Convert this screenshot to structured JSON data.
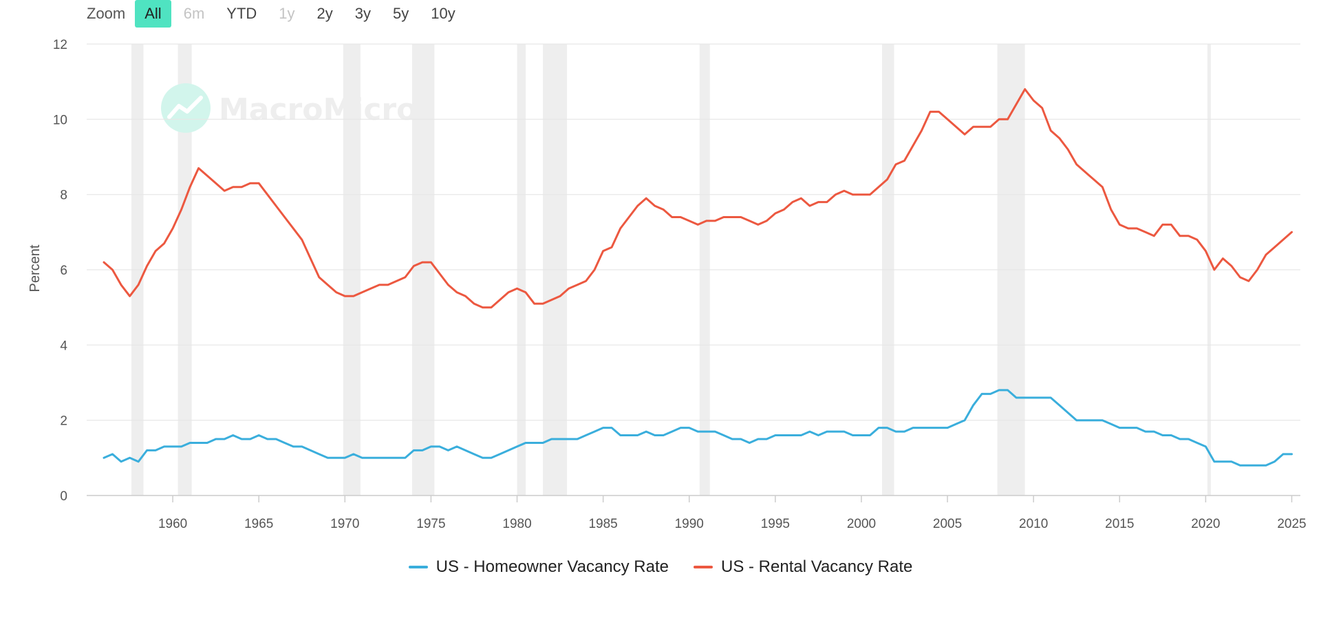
{
  "zoom": {
    "label": "Zoom",
    "buttons": [
      {
        "label": "All",
        "state": "active"
      },
      {
        "label": "6m",
        "state": "disabled"
      },
      {
        "label": "YTD",
        "state": "normal"
      },
      {
        "label": "1y",
        "state": "disabled"
      },
      {
        "label": "2y",
        "state": "normal"
      },
      {
        "label": "3y",
        "state": "normal"
      },
      {
        "label": "5y",
        "state": "normal"
      },
      {
        "label": "10y",
        "state": "normal"
      }
    ]
  },
  "watermark": "MacroMicro",
  "colors": {
    "homeowner": "#3aaedc",
    "rental": "#ec5840",
    "recession": "#eeeeee",
    "grid": "#e6e6e6",
    "accent": "#4fe3c1"
  },
  "chart_data": {
    "type": "line",
    "title": "",
    "xlabel": "",
    "ylabel": "Percent",
    "xlim": [
      1955,
      2025.5
    ],
    "ylim": [
      0,
      12
    ],
    "yticks": [
      0,
      2,
      4,
      6,
      8,
      10,
      12
    ],
    "xticks": [
      1960,
      1965,
      1970,
      1975,
      1980,
      1985,
      1990,
      1995,
      2000,
      2005,
      2010,
      2015,
      2020,
      2025
    ],
    "grid": true,
    "legend_position": "bottom-center",
    "recessions": [
      [
        1957.6,
        1958.3
      ],
      [
        1960.3,
        1961.1
      ],
      [
        1969.9,
        1970.9
      ],
      [
        1973.9,
        1975.2
      ],
      [
        1980.0,
        1980.5
      ],
      [
        1981.5,
        1982.9
      ],
      [
        1990.6,
        1991.2
      ],
      [
        2001.2,
        2001.9
      ],
      [
        2007.9,
        2009.5
      ],
      [
        2020.1,
        2020.3
      ]
    ],
    "series": [
      {
        "name": "US - Homeowner Vacancy Rate",
        "color": "#3aaedc",
        "points": [
          [
            1956.0,
            1.0
          ],
          [
            1956.5,
            1.1
          ],
          [
            1957.0,
            0.9
          ],
          [
            1957.5,
            1.0
          ],
          [
            1958.0,
            0.9
          ],
          [
            1958.5,
            1.2
          ],
          [
            1959.0,
            1.2
          ],
          [
            1959.5,
            1.3
          ],
          [
            1960.0,
            1.3
          ],
          [
            1960.5,
            1.3
          ],
          [
            1961.0,
            1.4
          ],
          [
            1961.5,
            1.4
          ],
          [
            1962.0,
            1.4
          ],
          [
            1962.5,
            1.5
          ],
          [
            1963.0,
            1.5
          ],
          [
            1963.5,
            1.6
          ],
          [
            1964.0,
            1.5
          ],
          [
            1964.5,
            1.5
          ],
          [
            1965.0,
            1.6
          ],
          [
            1965.5,
            1.5
          ],
          [
            1966.0,
            1.5
          ],
          [
            1966.5,
            1.4
          ],
          [
            1967.0,
            1.3
          ],
          [
            1967.5,
            1.3
          ],
          [
            1968.0,
            1.2
          ],
          [
            1968.5,
            1.1
          ],
          [
            1969.0,
            1.0
          ],
          [
            1969.5,
            1.0
          ],
          [
            1970.0,
            1.0
          ],
          [
            1970.5,
            1.1
          ],
          [
            1971.0,
            1.0
          ],
          [
            1971.5,
            1.0
          ],
          [
            1972.0,
            1.0
          ],
          [
            1972.5,
            1.0
          ],
          [
            1973.0,
            1.0
          ],
          [
            1973.5,
            1.0
          ],
          [
            1974.0,
            1.2
          ],
          [
            1974.5,
            1.2
          ],
          [
            1975.0,
            1.3
          ],
          [
            1975.5,
            1.3
          ],
          [
            1976.0,
            1.2
          ],
          [
            1976.5,
            1.3
          ],
          [
            1977.0,
            1.2
          ],
          [
            1977.5,
            1.1
          ],
          [
            1978.0,
            1.0
          ],
          [
            1978.5,
            1.0
          ],
          [
            1979.0,
            1.1
          ],
          [
            1979.5,
            1.2
          ],
          [
            1980.0,
            1.3
          ],
          [
            1980.5,
            1.4
          ],
          [
            1981.0,
            1.4
          ],
          [
            1981.5,
            1.4
          ],
          [
            1982.0,
            1.5
          ],
          [
            1982.5,
            1.5
          ],
          [
            1983.0,
            1.5
          ],
          [
            1983.5,
            1.5
          ],
          [
            1984.0,
            1.6
          ],
          [
            1984.5,
            1.7
          ],
          [
            1985.0,
            1.8
          ],
          [
            1985.5,
            1.8
          ],
          [
            1986.0,
            1.6
          ],
          [
            1986.5,
            1.6
          ],
          [
            1987.0,
            1.6
          ],
          [
            1987.5,
            1.7
          ],
          [
            1988.0,
            1.6
          ],
          [
            1988.5,
            1.6
          ],
          [
            1989.0,
            1.7
          ],
          [
            1989.5,
            1.8
          ],
          [
            1990.0,
            1.8
          ],
          [
            1990.5,
            1.7
          ],
          [
            1991.0,
            1.7
          ],
          [
            1991.5,
            1.7
          ],
          [
            1992.0,
            1.6
          ],
          [
            1992.5,
            1.5
          ],
          [
            1993.0,
            1.5
          ],
          [
            1993.5,
            1.4
          ],
          [
            1994.0,
            1.5
          ],
          [
            1994.5,
            1.5
          ],
          [
            1995.0,
            1.6
          ],
          [
            1995.5,
            1.6
          ],
          [
            1996.0,
            1.6
          ],
          [
            1996.5,
            1.6
          ],
          [
            1997.0,
            1.7
          ],
          [
            1997.5,
            1.6
          ],
          [
            1998.0,
            1.7
          ],
          [
            1998.5,
            1.7
          ],
          [
            1999.0,
            1.7
          ],
          [
            1999.5,
            1.6
          ],
          [
            2000.0,
            1.6
          ],
          [
            2000.5,
            1.6
          ],
          [
            2001.0,
            1.8
          ],
          [
            2001.5,
            1.8
          ],
          [
            2002.0,
            1.7
          ],
          [
            2002.5,
            1.7
          ],
          [
            2003.0,
            1.8
          ],
          [
            2003.5,
            1.8
          ],
          [
            2004.0,
            1.8
          ],
          [
            2004.5,
            1.8
          ],
          [
            2005.0,
            1.8
          ],
          [
            2005.5,
            1.9
          ],
          [
            2006.0,
            2.0
          ],
          [
            2006.5,
            2.4
          ],
          [
            2007.0,
            2.7
          ],
          [
            2007.5,
            2.7
          ],
          [
            2008.0,
            2.8
          ],
          [
            2008.5,
            2.8
          ],
          [
            2009.0,
            2.6
          ],
          [
            2009.5,
            2.6
          ],
          [
            2010.0,
            2.6
          ],
          [
            2010.5,
            2.6
          ],
          [
            2011.0,
            2.6
          ],
          [
            2011.5,
            2.4
          ],
          [
            2012.0,
            2.2
          ],
          [
            2012.5,
            2.0
          ],
          [
            2013.0,
            2.0
          ],
          [
            2013.5,
            2.0
          ],
          [
            2014.0,
            2.0
          ],
          [
            2014.5,
            1.9
          ],
          [
            2015.0,
            1.8
          ],
          [
            2015.5,
            1.8
          ],
          [
            2016.0,
            1.8
          ],
          [
            2016.5,
            1.7
          ],
          [
            2017.0,
            1.7
          ],
          [
            2017.5,
            1.6
          ],
          [
            2018.0,
            1.6
          ],
          [
            2018.5,
            1.5
          ],
          [
            2019.0,
            1.5
          ],
          [
            2019.5,
            1.4
          ],
          [
            2020.0,
            1.3
          ],
          [
            2020.5,
            0.9
          ],
          [
            2021.0,
            0.9
          ],
          [
            2021.5,
            0.9
          ],
          [
            2022.0,
            0.8
          ],
          [
            2022.5,
            0.8
          ],
          [
            2023.0,
            0.8
          ],
          [
            2023.5,
            0.8
          ],
          [
            2024.0,
            0.9
          ],
          [
            2024.5,
            1.1
          ],
          [
            2025.0,
            1.1
          ]
        ]
      },
      {
        "name": "US - Rental Vacancy Rate",
        "color": "#ec5840",
        "points": [
          [
            1956.0,
            6.2
          ],
          [
            1956.5,
            6.0
          ],
          [
            1957.0,
            5.6
          ],
          [
            1957.5,
            5.3
          ],
          [
            1958.0,
            5.6
          ],
          [
            1958.5,
            6.1
          ],
          [
            1959.0,
            6.5
          ],
          [
            1959.5,
            6.7
          ],
          [
            1960.0,
            7.1
          ],
          [
            1960.5,
            7.6
          ],
          [
            1961.0,
            8.2
          ],
          [
            1961.5,
            8.7
          ],
          [
            1962.0,
            8.5
          ],
          [
            1962.5,
            8.3
          ],
          [
            1963.0,
            8.1
          ],
          [
            1963.5,
            8.2
          ],
          [
            1964.0,
            8.2
          ],
          [
            1964.5,
            8.3
          ],
          [
            1965.0,
            8.3
          ],
          [
            1965.5,
            8.0
          ],
          [
            1966.0,
            7.7
          ],
          [
            1966.5,
            7.4
          ],
          [
            1967.0,
            7.1
          ],
          [
            1967.5,
            6.8
          ],
          [
            1968.0,
            6.3
          ],
          [
            1968.5,
            5.8
          ],
          [
            1969.0,
            5.6
          ],
          [
            1969.5,
            5.4
          ],
          [
            1970.0,
            5.3
          ],
          [
            1970.5,
            5.3
          ],
          [
            1971.0,
            5.4
          ],
          [
            1971.5,
            5.5
          ],
          [
            1972.0,
            5.6
          ],
          [
            1972.5,
            5.6
          ],
          [
            1973.0,
            5.7
          ],
          [
            1973.5,
            5.8
          ],
          [
            1974.0,
            6.1
          ],
          [
            1974.5,
            6.2
          ],
          [
            1975.0,
            6.2
          ],
          [
            1975.5,
            5.9
          ],
          [
            1976.0,
            5.6
          ],
          [
            1976.5,
            5.4
          ],
          [
            1977.0,
            5.3
          ],
          [
            1977.5,
            5.1
          ],
          [
            1978.0,
            5.0
          ],
          [
            1978.5,
            5.0
          ],
          [
            1979.0,
            5.2
          ],
          [
            1979.5,
            5.4
          ],
          [
            1980.0,
            5.5
          ],
          [
            1980.5,
            5.4
          ],
          [
            1981.0,
            5.1
          ],
          [
            1981.5,
            5.1
          ],
          [
            1982.0,
            5.2
          ],
          [
            1982.5,
            5.3
          ],
          [
            1983.0,
            5.5
          ],
          [
            1983.5,
            5.6
          ],
          [
            1984.0,
            5.7
          ],
          [
            1984.5,
            6.0
          ],
          [
            1985.0,
            6.5
          ],
          [
            1985.5,
            6.6
          ],
          [
            1986.0,
            7.1
          ],
          [
            1986.5,
            7.4
          ],
          [
            1987.0,
            7.7
          ],
          [
            1987.5,
            7.9
          ],
          [
            1988.0,
            7.7
          ],
          [
            1988.5,
            7.6
          ],
          [
            1989.0,
            7.4
          ],
          [
            1989.5,
            7.4
          ],
          [
            1990.0,
            7.3
          ],
          [
            1990.5,
            7.2
          ],
          [
            1991.0,
            7.3
          ],
          [
            1991.5,
            7.3
          ],
          [
            1992.0,
            7.4
          ],
          [
            1992.5,
            7.4
          ],
          [
            1993.0,
            7.4
          ],
          [
            1993.5,
            7.3
          ],
          [
            1994.0,
            7.2
          ],
          [
            1994.5,
            7.3
          ],
          [
            1995.0,
            7.5
          ],
          [
            1995.5,
            7.6
          ],
          [
            1996.0,
            7.8
          ],
          [
            1996.5,
            7.9
          ],
          [
            1997.0,
            7.7
          ],
          [
            1997.5,
            7.8
          ],
          [
            1998.0,
            7.8
          ],
          [
            1998.5,
            8.0
          ],
          [
            1999.0,
            8.1
          ],
          [
            1999.5,
            8.0
          ],
          [
            2000.0,
            8.0
          ],
          [
            2000.5,
            8.0
          ],
          [
            2001.0,
            8.2
          ],
          [
            2001.5,
            8.4
          ],
          [
            2002.0,
            8.8
          ],
          [
            2002.5,
            8.9
          ],
          [
            2003.0,
            9.3
          ],
          [
            2003.5,
            9.7
          ],
          [
            2004.0,
            10.2
          ],
          [
            2004.5,
            10.2
          ],
          [
            2005.0,
            10.0
          ],
          [
            2005.5,
            9.8
          ],
          [
            2006.0,
            9.6
          ],
          [
            2006.5,
            9.8
          ],
          [
            2007.0,
            9.8
          ],
          [
            2007.5,
            9.8
          ],
          [
            2008.0,
            10.0
          ],
          [
            2008.5,
            10.0
          ],
          [
            2009.0,
            10.4
          ],
          [
            2009.5,
            10.8
          ],
          [
            2010.0,
            10.5
          ],
          [
            2010.5,
            10.3
          ],
          [
            2011.0,
            9.7
          ],
          [
            2011.5,
            9.5
          ],
          [
            2012.0,
            9.2
          ],
          [
            2012.5,
            8.8
          ],
          [
            2013.0,
            8.6
          ],
          [
            2013.5,
            8.4
          ],
          [
            2014.0,
            8.2
          ],
          [
            2014.5,
            7.6
          ],
          [
            2015.0,
            7.2
          ],
          [
            2015.5,
            7.1
          ],
          [
            2016.0,
            7.1
          ],
          [
            2016.5,
            7.0
          ],
          [
            2017.0,
            6.9
          ],
          [
            2017.5,
            7.2
          ],
          [
            2018.0,
            7.2
          ],
          [
            2018.5,
            6.9
          ],
          [
            2019.0,
            6.9
          ],
          [
            2019.5,
            6.8
          ],
          [
            2020.0,
            6.5
          ],
          [
            2020.5,
            6.0
          ],
          [
            2021.0,
            6.3
          ],
          [
            2021.5,
            6.1
          ],
          [
            2022.0,
            5.8
          ],
          [
            2022.5,
            5.7
          ],
          [
            2023.0,
            6.0
          ],
          [
            2023.5,
            6.4
          ],
          [
            2024.0,
            6.6
          ],
          [
            2024.5,
            6.8
          ],
          [
            2025.0,
            7.0
          ]
        ]
      }
    ]
  }
}
